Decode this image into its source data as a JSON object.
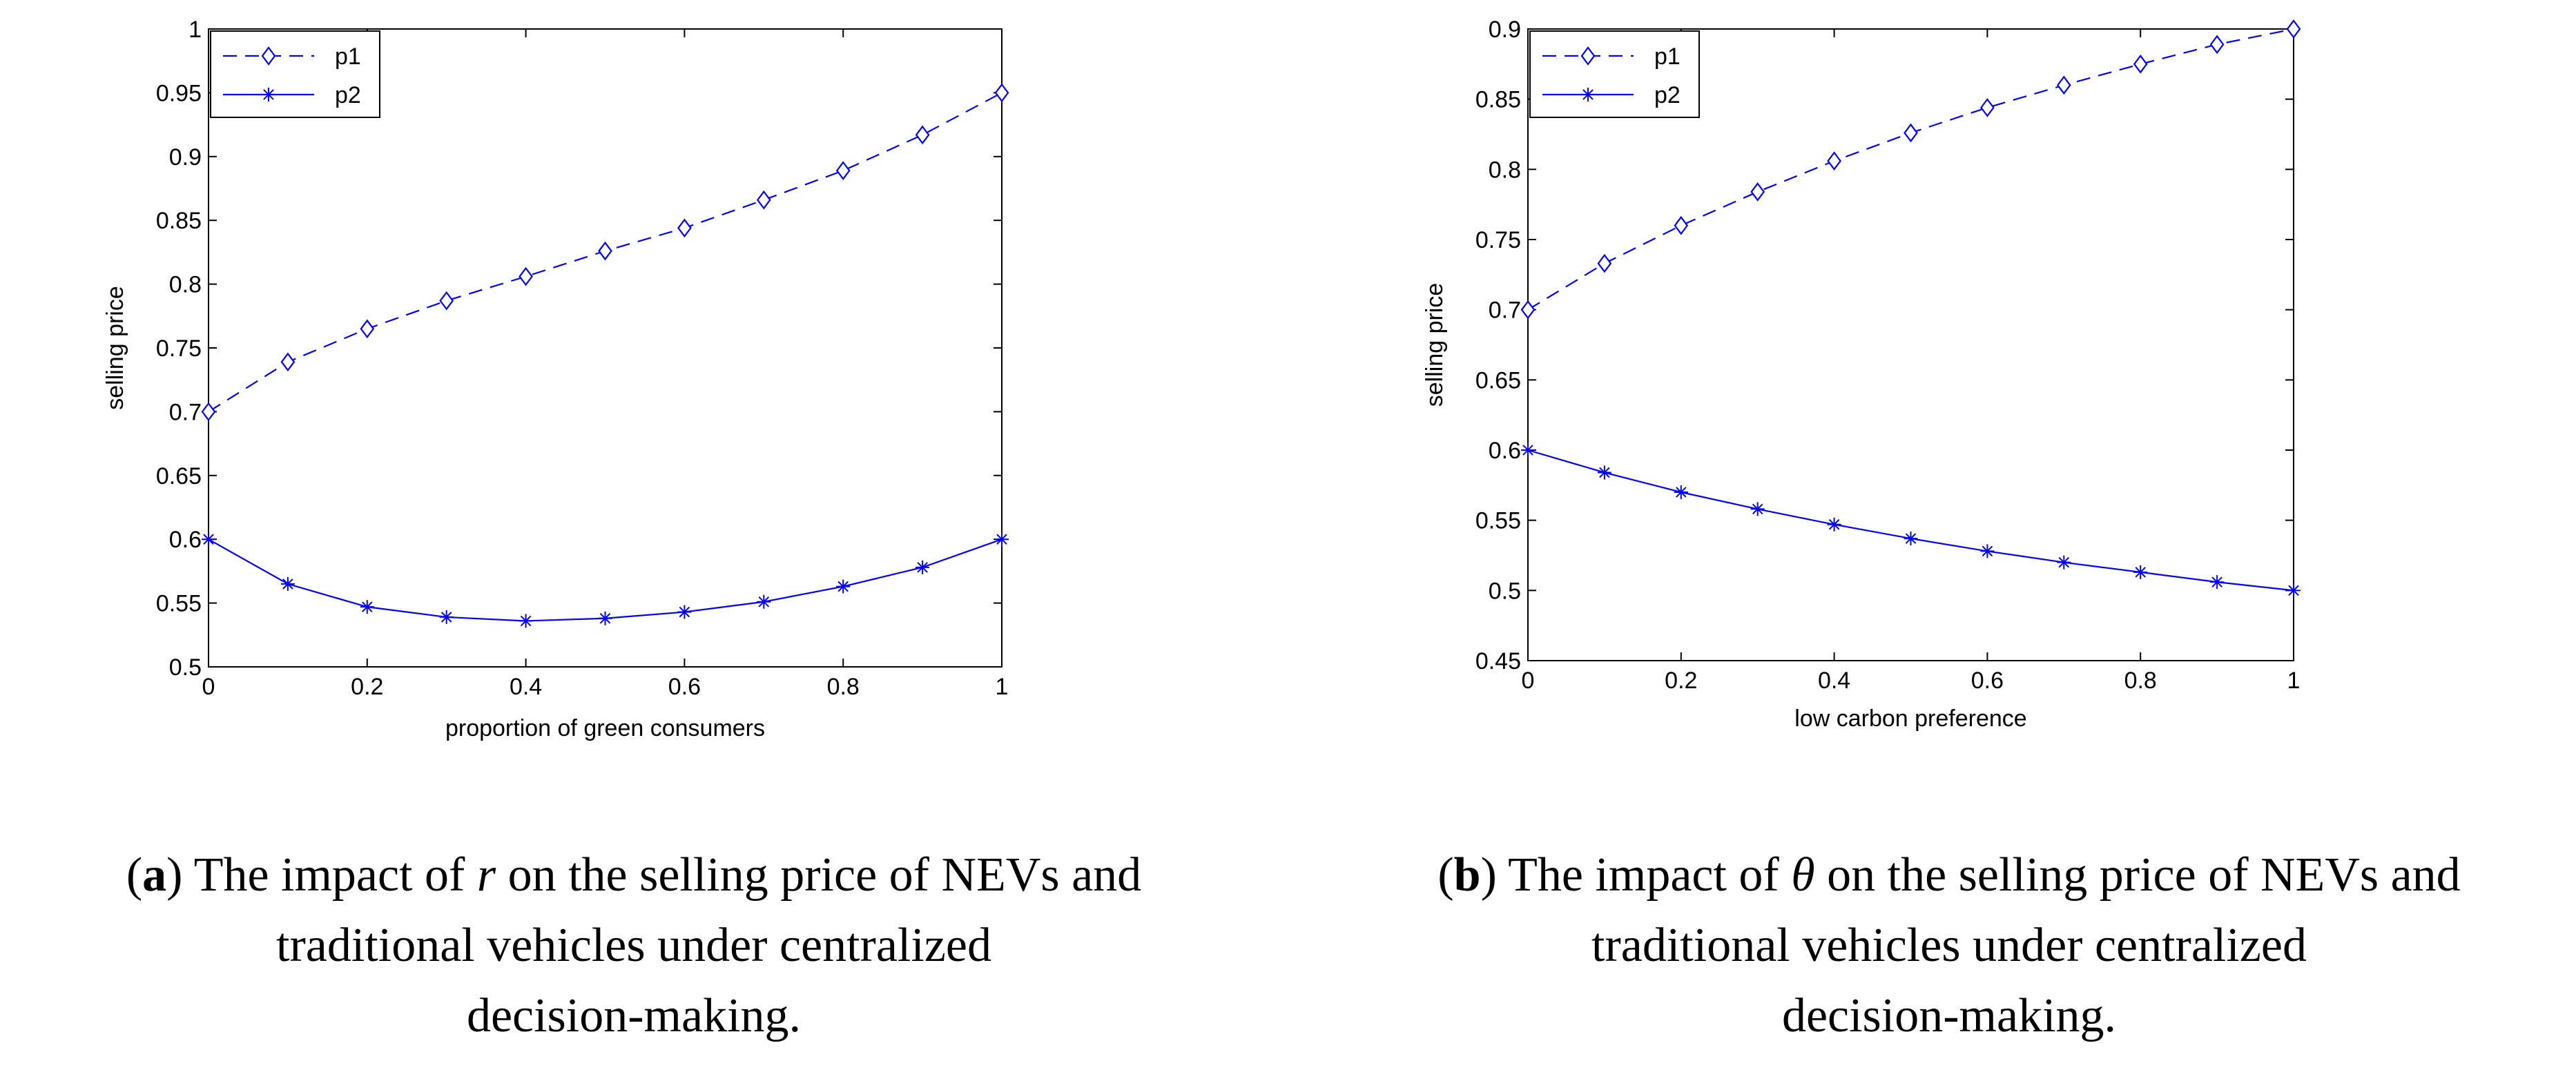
{
  "chart_data": [
    {
      "type": "line",
      "title": "",
      "xlabel": "proportion of green consumers",
      "ylabel": "selling price",
      "xlim": [
        0,
        1
      ],
      "ylim": [
        0.5,
        1
      ],
      "xticks": [
        "0",
        "0.2",
        "0.4",
        "0.6",
        "0.8",
        "1"
      ],
      "yticks": [
        "0.5",
        "0.55",
        "0.6",
        "0.65",
        "0.7",
        "0.75",
        "0.8",
        "0.85",
        "0.9",
        "0.95",
        "1"
      ],
      "grid": false,
      "legend_position": "top-left",
      "x": [
        0,
        0.1,
        0.2,
        0.3,
        0.4,
        0.5,
        0.6,
        0.7,
        0.8,
        0.9,
        1.0
      ],
      "series": [
        {
          "name": "p1",
          "style": "dashed",
          "marker": "diamond",
          "color": "#0000ff",
          "values": [
            0.7,
            0.739,
            0.765,
            0.787,
            0.806,
            0.826,
            0.844,
            0.866,
            0.889,
            0.917,
            0.95
          ]
        },
        {
          "name": "p2",
          "style": "solid",
          "marker": "asterisk",
          "color": "#0000ff",
          "values": [
            0.6,
            0.565,
            0.547,
            0.539,
            0.536,
            0.538,
            0.543,
            0.551,
            0.563,
            0.578,
            0.6
          ]
        }
      ],
      "caption": {
        "lines": [
          [
            "(",
            "a",
            ") The impact of  ",
            "r",
            "  on the selling price of NEVs and"
          ],
          [
            "traditional vehicles under centralized"
          ],
          [
            "decision-making."
          ]
        ]
      }
    },
    {
      "type": "line",
      "title": "",
      "xlabel": "low carbon preference",
      "ylabel": "selling price",
      "xlim": [
        0,
        1
      ],
      "ylim": [
        0.45,
        0.9
      ],
      "xticks": [
        "0",
        "0.2",
        "0.4",
        "0.6",
        "0.8",
        "1"
      ],
      "yticks": [
        "0.45",
        "0.5",
        "0.55",
        "0.6",
        "0.65",
        "0.7",
        "0.75",
        "0.8",
        "0.85",
        "0.9"
      ],
      "grid": false,
      "legend_position": "top-left",
      "x": [
        0,
        0.1,
        0.2,
        0.3,
        0.4,
        0.5,
        0.6,
        0.7,
        0.8,
        0.9,
        1.0
      ],
      "series": [
        {
          "name": "p1",
          "style": "dashed",
          "marker": "diamond",
          "color": "#0000ff",
          "values": [
            0.7,
            0.733,
            0.76,
            0.784,
            0.806,
            0.826,
            0.844,
            0.86,
            0.875,
            0.889,
            0.9
          ]
        },
        {
          "name": "p2",
          "style": "solid",
          "marker": "asterisk",
          "color": "#0000ff",
          "values": [
            0.6,
            0.584,
            0.57,
            0.558,
            0.547,
            0.537,
            0.528,
            0.52,
            0.513,
            0.506,
            0.5
          ]
        }
      ],
      "caption": {
        "lines": [
          [
            "(",
            "b",
            ") The impact of  ",
            "θ",
            " on the selling price of NEVs and"
          ],
          [
            "traditional vehicles under centralized"
          ],
          [
            "decision-making."
          ]
        ]
      }
    }
  ]
}
